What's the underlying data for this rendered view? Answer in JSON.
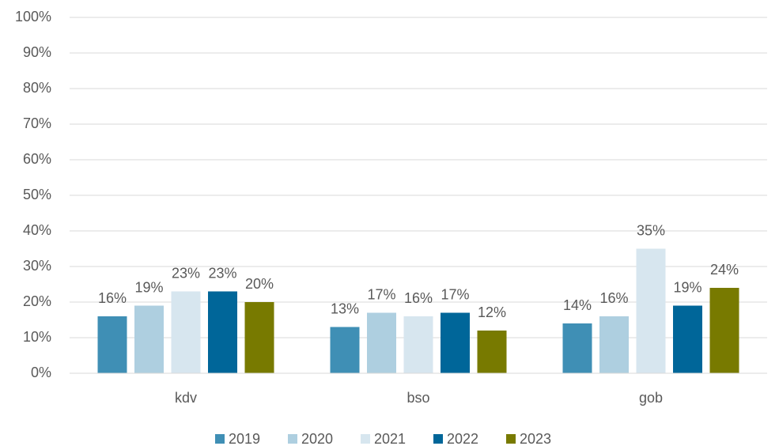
{
  "chart_data": {
    "type": "bar",
    "categories": [
      "kdv",
      "bso",
      "gob"
    ],
    "series": [
      {
        "name": "2019",
        "color": "#3f8fb5",
        "values": [
          16,
          13,
          14
        ],
        "value_labels": [
          "16%",
          "13%",
          "14%"
        ]
      },
      {
        "name": "2020",
        "color": "#aecfe0",
        "values": [
          19,
          17,
          16
        ],
        "value_labels": [
          "19%",
          "17%",
          "16%"
        ]
      },
      {
        "name": "2021",
        "color": "#d7e6ef",
        "values": [
          23,
          16,
          35
        ],
        "value_labels": [
          "23%",
          "16%",
          "35%"
        ]
      },
      {
        "name": "2022",
        "color": "#006699",
        "values": [
          23,
          17,
          19
        ],
        "value_labels": [
          "23%",
          "17%",
          "19%"
        ]
      },
      {
        "name": "2023",
        "color": "#787a00",
        "values": [
          20,
          12,
          24
        ],
        "value_labels": [
          "20%",
          "12%",
          "24%"
        ]
      }
    ],
    "ylim": [
      0,
      100
    ],
    "yticks": [
      {
        "value": 0,
        "label": "0%"
      },
      {
        "value": 10,
        "label": "10%"
      },
      {
        "value": 20,
        "label": "20%"
      },
      {
        "value": 30,
        "label": "30%"
      },
      {
        "value": 40,
        "label": "40%"
      },
      {
        "value": 50,
        "label": "50%"
      },
      {
        "value": 60,
        "label": "60%"
      },
      {
        "value": 70,
        "label": "70%"
      },
      {
        "value": 80,
        "label": "80%"
      },
      {
        "value": 90,
        "label": "90%"
      },
      {
        "value": 100,
        "label": "100%"
      }
    ],
    "grid": true,
    "legend": "bottom"
  }
}
